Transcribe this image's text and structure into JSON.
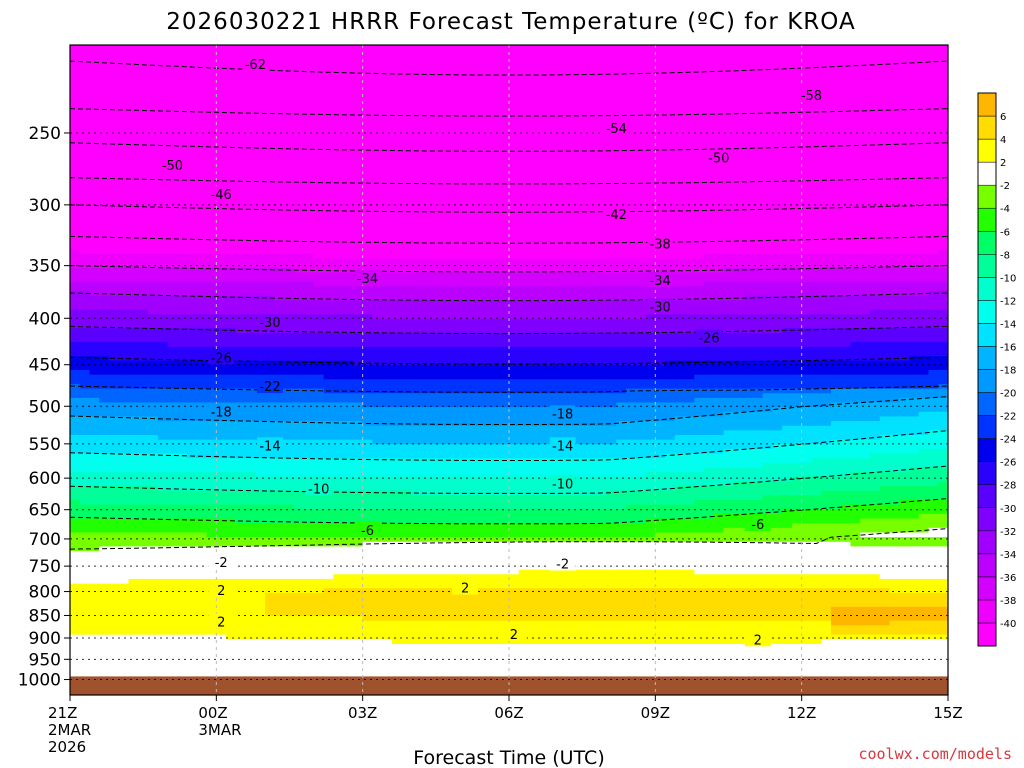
{
  "chart_data": {
    "type": "heatmap",
    "title": "2026030221 HRRR Forecast Temperature (ºC) for KROA",
    "xlabel": "Forecast Time (UTC)",
    "credit": "coolwx.com/models",
    "y_axis": {
      "scale": "log-pressure",
      "range": [
        1040,
        200
      ],
      "ticks": [
        250,
        300,
        350,
        400,
        450,
        500,
        550,
        600,
        650,
        700,
        750,
        800,
        850,
        900,
        950,
        1000
      ]
    },
    "x_axis": {
      "range_hours": [
        0,
        18
      ],
      "ticks": [
        {
          "h": 0,
          "lines": [
            "21Z",
            "2MAR",
            "2026"
          ]
        },
        {
          "h": 3,
          "lines": [
            "00Z",
            "3MAR"
          ]
        },
        {
          "h": 6,
          "lines": [
            "03Z"
          ]
        },
        {
          "h": 9,
          "lines": [
            "06Z"
          ]
        },
        {
          "h": 12,
          "lines": [
            "09Z"
          ]
        },
        {
          "h": 15,
          "lines": [
            "12Z"
          ]
        },
        {
          "h": 18,
          "lines": [
            "15Z"
          ]
        }
      ]
    },
    "colorbar": {
      "levels": [
        -40,
        -38,
        -36,
        -34,
        -32,
        -30,
        -28,
        -26,
        -24,
        -22,
        -20,
        -18,
        -16,
        -14,
        -12,
        -10,
        -8,
        -6,
        -4,
        -2,
        2,
        4,
        6
      ],
      "colors": [
        "#ff00ff",
        "#ee00ff",
        "#d400ff",
        "#bb00ff",
        "#a000ff",
        "#8000ff",
        "#5a00ff",
        "#2a00ff",
        "#0000ee",
        "#0033ff",
        "#0066ff",
        "#0099ff",
        "#00b4ff",
        "#00e2ff",
        "#00ffee",
        "#00ffcc",
        "#00ff99",
        "#00ff66",
        "#22ff00",
        "#77ff00",
        "#ffffff",
        "#ffff00",
        "#ffdd00",
        "#ffb600"
      ]
    },
    "profile_pressure_hpa": [
      200,
      225,
      250,
      275,
      300,
      325,
      350,
      375,
      400,
      425,
      450,
      475,
      500,
      525,
      550,
      575,
      600,
      625,
      650,
      675,
      700,
      725,
      750,
      775,
      800,
      825,
      850,
      875,
      900,
      925,
      950,
      975,
      1000
    ],
    "profile_temperature_c": [
      -63,
      -60,
      -55,
      -51,
      -46,
      -42,
      -38,
      -34,
      -31,
      -28,
      -25,
      -22,
      -19,
      -17,
      -15,
      -13,
      -11,
      -9,
      -7,
      -5,
      -3,
      -1,
      1,
      2,
      4,
      4,
      4,
      3,
      2,
      1,
      1,
      1,
      1
    ],
    "underground_below_hpa": 990,
    "contour_labels": [
      {
        "text": "-62",
        "h": 3.8,
        "p": 210
      },
      {
        "text": "-58",
        "h": 15.2,
        "p": 227
      },
      {
        "text": "-54",
        "h": 11.2,
        "p": 247
      },
      {
        "text": "-50",
        "h": 2.1,
        "p": 271
      },
      {
        "text": "-50",
        "h": 13.3,
        "p": 266
      },
      {
        "text": "-46",
        "h": 3.1,
        "p": 292
      },
      {
        "text": "-42",
        "h": 11.2,
        "p": 307
      },
      {
        "text": "-38",
        "h": 12.1,
        "p": 331
      },
      {
        "text": "-34",
        "h": 6.1,
        "p": 361
      },
      {
        "text": "-34",
        "h": 12.1,
        "p": 363
      },
      {
        "text": "-30",
        "h": 4.1,
        "p": 404
      },
      {
        "text": "-30",
        "h": 12.1,
        "p": 388
      },
      {
        "text": "-26",
        "h": 3.1,
        "p": 442
      },
      {
        "text": "-26",
        "h": 13.1,
        "p": 420
      },
      {
        "text": "-22",
        "h": 4.1,
        "p": 475
      },
      {
        "text": "-18",
        "h": 3.1,
        "p": 507
      },
      {
        "text": "-18",
        "h": 10.1,
        "p": 509
      },
      {
        "text": "-14",
        "h": 4.1,
        "p": 552
      },
      {
        "text": "-14",
        "h": 10.1,
        "p": 552
      },
      {
        "text": "-10",
        "h": 5.1,
        "p": 616
      },
      {
        "text": "-10",
        "h": 10.1,
        "p": 608
      },
      {
        "text": "-6",
        "h": 6.1,
        "p": 684
      },
      {
        "text": "-6",
        "h": 14.1,
        "p": 674
      },
      {
        "text": "-2",
        "h": 3.1,
        "p": 742
      },
      {
        "text": "-2",
        "h": 10.1,
        "p": 745
      },
      {
        "text": "2",
        "h": 3.1,
        "p": 797
      },
      {
        "text": "2",
        "h": 8.1,
        "p": 792
      },
      {
        "text": "2",
        "h": 3.1,
        "p": 863
      },
      {
        "text": "2",
        "h": 9.1,
        "p": 891
      },
      {
        "text": "2",
        "h": 14.1,
        "p": 903
      }
    ]
  }
}
